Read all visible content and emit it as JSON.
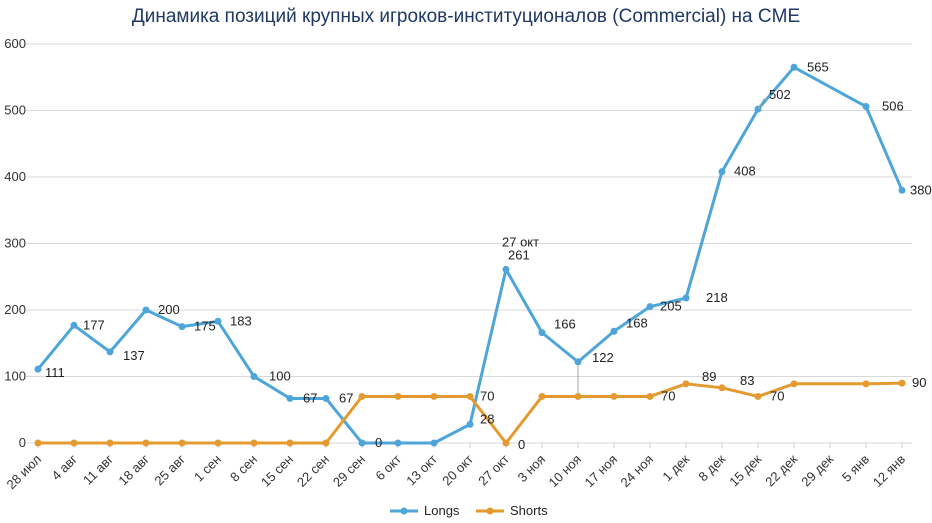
{
  "chart_data": {
    "type": "line",
    "title": "Динамика позиций крупных игроков-институционалов (Commercial) на CME",
    "xlabel": "",
    "ylabel": "",
    "ylim": [
      0,
      600
    ],
    "yticks": [
      0,
      100,
      200,
      300,
      400,
      500,
      600
    ],
    "grid": true,
    "legend_position": "bottom",
    "categories": [
      "28 июл",
      "4 авг",
      "11 авг",
      "18 авг",
      "25 авг",
      "1 сен",
      "8 сен",
      "15 сен",
      "22 сен",
      "29 сен",
      "6 окт",
      "13 окт",
      "20 окт",
      "27 окт",
      "3 ноя",
      "10 ноя",
      "17 ноя",
      "24 ноя",
      "1 дек",
      "8 дек",
      "15 дек",
      "22 дек",
      "29 дек",
      "5 янв",
      "12 янв"
    ],
    "series": [
      {
        "name": "Longs",
        "color": "#4ea5d9",
        "values": [
          111,
          177,
          137,
          200,
          175,
          183,
          100,
          67,
          67,
          0,
          0,
          0,
          28,
          261,
          166,
          122,
          168,
          205,
          218,
          408,
          502,
          565,
          null,
          506,
          380
        ]
      },
      {
        "name": "Shorts",
        "color": "#e59a2f",
        "values": [
          0,
          0,
          0,
          0,
          0,
          0,
          0,
          0,
          0,
          70,
          70,
          70,
          70,
          0,
          70,
          70,
          70,
          70,
          89,
          83,
          70,
          89,
          null,
          89,
          90
        ]
      }
    ],
    "data_labels": [
      {
        "text": "111",
        "series": "Longs",
        "index": 0
      },
      {
        "text": "177",
        "series": "Longs",
        "index": 1
      },
      {
        "text": "137",
        "series": "Longs",
        "index": 2
      },
      {
        "text": "200",
        "series": "Longs",
        "index": 3
      },
      {
        "text": "175",
        "series": "Longs",
        "index": 4
      },
      {
        "text": "183",
        "series": "Longs",
        "index": 5
      },
      {
        "text": "100",
        "series": "Longs",
        "index": 6
      },
      {
        "text": "67",
        "series": "Longs",
        "index": 7
      },
      {
        "text": "67",
        "series": "Longs",
        "index": 8
      },
      {
        "text": "0",
        "series": "Longs",
        "index": 9
      },
      {
        "text": "28",
        "series": "Longs",
        "index": 12
      },
      {
        "text": "261",
        "series": "Longs",
        "index": 13
      },
      {
        "text": "166",
        "series": "Longs",
        "index": 14
      },
      {
        "text": "122",
        "series": "Longs",
        "index": 15
      },
      {
        "text": "168",
        "series": "Longs",
        "index": 16
      },
      {
        "text": "205",
        "series": "Longs",
        "index": 17
      },
      {
        "text": "218",
        "series": "Longs",
        "index": 18
      },
      {
        "text": "408",
        "series": "Longs",
        "index": 19
      },
      {
        "text": "502",
        "series": "Longs",
        "index": 20
      },
      {
        "text": "565",
        "series": "Longs",
        "index": 21
      },
      {
        "text": "506",
        "series": "Longs",
        "index": 23
      },
      {
        "text": "380",
        "series": "Longs",
        "index": 24
      },
      {
        "text": "70",
        "series": "Shorts",
        "index": 12
      },
      {
        "text": "0",
        "series": "Shorts",
        "index": 13
      },
      {
        "text": "70",
        "series": "Shorts",
        "index": 17
      },
      {
        "text": "89",
        "series": "Shorts",
        "index": 18
      },
      {
        "text": "83",
        "series": "Shorts",
        "index": 19
      },
      {
        "text": "70",
        "series": "Shorts",
        "index": 20
      },
      {
        "text": "90",
        "series": "Shorts",
        "index": 24
      }
    ],
    "annotations": [
      {
        "text": "27 окт",
        "series": "Longs",
        "index": 13
      }
    ]
  }
}
